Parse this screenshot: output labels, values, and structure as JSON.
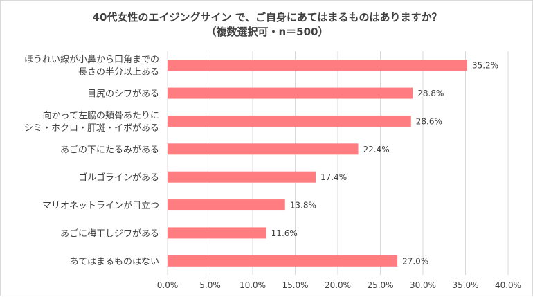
{
  "chart_data": {
    "type": "bar",
    "orientation": "horizontal",
    "title": "40代女性のエイジングサイン で、ご自身にあてはまるものはありますか？",
    "subtitle": "（複数選択可・n＝500）",
    "categories": [
      [
        "ほうれい線が小鼻から口角までの",
        "長さの半分以上ある"
      ],
      [
        "目尻のシワがある"
      ],
      [
        "向かって左脇の頬骨あたりに",
        "シミ・ホクロ・肝斑・イボがある"
      ],
      [
        "あごの下にたるみがある"
      ],
      [
        "ゴルゴラインがある"
      ],
      [
        "マリオネットラインが目立つ"
      ],
      [
        "あごに梅干しジワがある"
      ],
      [
        "あてはまるものはない"
      ]
    ],
    "values": [
      35.2,
      28.8,
      28.6,
      22.4,
      17.4,
      13.8,
      11.6,
      27.0
    ],
    "value_labels": [
      "35.2%",
      "28.8%",
      "28.6%",
      "22.4%",
      "17.4%",
      "13.8%",
      "11.6%",
      "27.0%"
    ],
    "xlim": [
      0,
      40
    ],
    "xticks": [
      0,
      5,
      10,
      15,
      20,
      25,
      30,
      35,
      40
    ],
    "xtick_labels": [
      "0.0%",
      "5.0%",
      "10.0%",
      "15.0%",
      "20.0%",
      "25.0%",
      "30.0%",
      "35.0%",
      "40.0%"
    ],
    "gridlines": true,
    "legend": "none",
    "colors": {
      "bar": "#ff7c80",
      "grid": "#d9d9d9",
      "text": "#404040"
    }
  }
}
